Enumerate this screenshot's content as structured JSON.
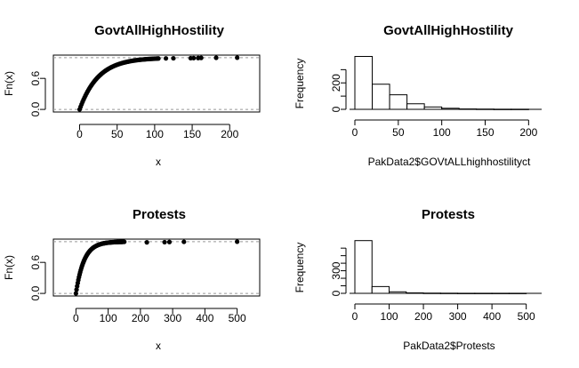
{
  "chart_data": [
    {
      "id": "ecdf1",
      "type": "scatter",
      "title": "GovtAllHighHostility",
      "xlabel": "x",
      "ylabel": "Fn(x)",
      "xlim": [
        -35,
        240
      ],
      "ylim": [
        -0.05,
        1.05
      ],
      "xticks": [
        0,
        50,
        100,
        150,
        200
      ],
      "yticks": [
        0.0,
        0.6
      ],
      "ytick_labels": [
        "0.0",
        "0.6"
      ],
      "hlines": [
        0,
        1
      ],
      "curve_scale": 25,
      "curve_max_x": 105,
      "outliers": [
        115,
        125,
        148,
        152,
        158,
        162,
        182,
        210
      ]
    },
    {
      "id": "hist1",
      "type": "bar",
      "title": "GovtAllHighHostility",
      "xlabel": "PakData2$GOVtALLhighhostilityct",
      "ylabel": "Frequency",
      "xlim": [
        0,
        215
      ],
      "ylim": [
        0,
        410
      ],
      "xticks": [
        0,
        50,
        100,
        150,
        200
      ],
      "yticks": [
        0,
        100,
        200,
        300
      ],
      "ytick_labels": [
        "0",
        "",
        "200",
        ""
      ],
      "breaks": [
        0,
        20,
        40,
        60,
        80,
        100,
        120,
        140,
        160,
        180,
        200
      ],
      "values": [
        400,
        190,
        110,
        42,
        18,
        8,
        3,
        2,
        1,
        1
      ]
    },
    {
      "id": "ecdf2",
      "type": "scatter",
      "title": "Protests",
      "xlabel": "x",
      "ylabel": "Fn(x)",
      "xlim": [
        -70,
        570
      ],
      "ylim": [
        -0.05,
        1.05
      ],
      "xticks": [
        0,
        100,
        200,
        300,
        400,
        500
      ],
      "yticks": [
        0.0,
        0.6
      ],
      "ytick_labels": [
        "0.0",
        "0.6"
      ],
      "hlines": [
        0,
        1
      ],
      "curve_scale": 25,
      "curve_max_x": 150,
      "outliers": [
        220,
        275,
        290,
        335,
        500
      ]
    },
    {
      "id": "hist2",
      "type": "bar",
      "title": "Protests",
      "xlabel": "PakData2$Protests",
      "ylabel": "Frequency",
      "xlim": [
        0,
        545
      ],
      "ylim": [
        0,
        720
      ],
      "xticks": [
        0,
        100,
        200,
        300,
        400,
        500
      ],
      "yticks": [
        0,
        100,
        200,
        300,
        400,
        500,
        600
      ],
      "ytick_labels": [
        "0",
        "",
        "",
        "300",
        "",
        "",
        ""
      ],
      "breaks": [
        0,
        50,
        100,
        150,
        200,
        250,
        300,
        350,
        400,
        450,
        500
      ],
      "values": [
        700,
        90,
        20,
        6,
        3,
        2,
        1,
        1,
        1,
        1
      ]
    }
  ]
}
